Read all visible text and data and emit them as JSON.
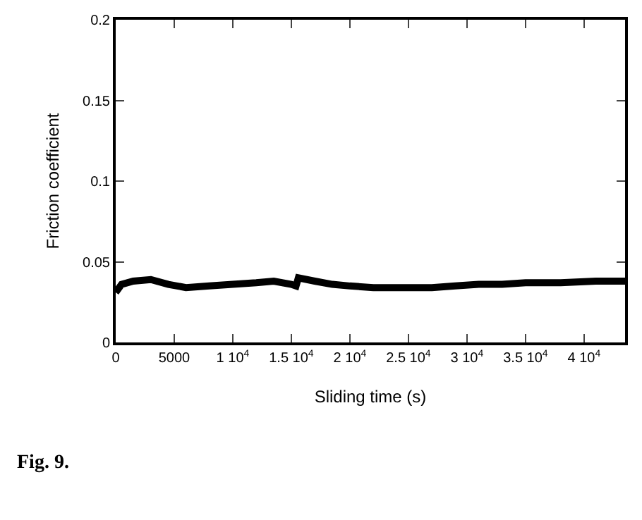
{
  "chart_data": {
    "type": "line",
    "xlabel": "Sliding time (s)",
    "ylabel": "Friction coefficient",
    "annotations": [
      "Fig. 9."
    ],
    "x": [
      0,
      500,
      1500,
      3000,
      4500,
      6000,
      8000,
      10000,
      12000,
      13500,
      15000,
      15400,
      15600,
      17000,
      18500,
      20000,
      22000,
      25000,
      27000,
      29000,
      31000,
      33000,
      35000,
      38000,
      41000,
      43500
    ],
    "series": [
      {
        "color": "#000000",
        "values": [
          0.031,
          0.036,
          0.038,
          0.039,
          0.036,
          0.034,
          0.035,
          0.036,
          0.037,
          0.038,
          0.036,
          0.035,
          0.04,
          0.038,
          0.036,
          0.035,
          0.034,
          0.034,
          0.034,
          0.035,
          0.036,
          0.036,
          0.037,
          0.037,
          0.038,
          0.038
        ]
      }
    ],
    "xlim": [
      0,
      43500
    ],
    "xticks": [
      0,
      5000,
      {
        "value": 10000,
        "label": "1 10$^{4}$"
      },
      {
        "value": 15000,
        "label": "1.5 10$^{4}$"
      },
      {
        "value": 20000,
        "label": "2 10$^{4}$"
      },
      {
        "value": 25000,
        "label": "2.5 10$^{4}$"
      },
      {
        "value": 30000,
        "label": "3 10$^{4}$"
      },
      {
        "value": 35000,
        "label": "3.5 10$^{4}$"
      },
      {
        "value": 40000,
        "label": "4 10$^{4}$"
      }
    ],
    "ylim": [
      0,
      0.2
    ],
    "yticks": [
      0,
      0.05,
      0.1,
      0.15,
      0.2
    ],
    "marker": "none",
    "line_style": "solid"
  }
}
